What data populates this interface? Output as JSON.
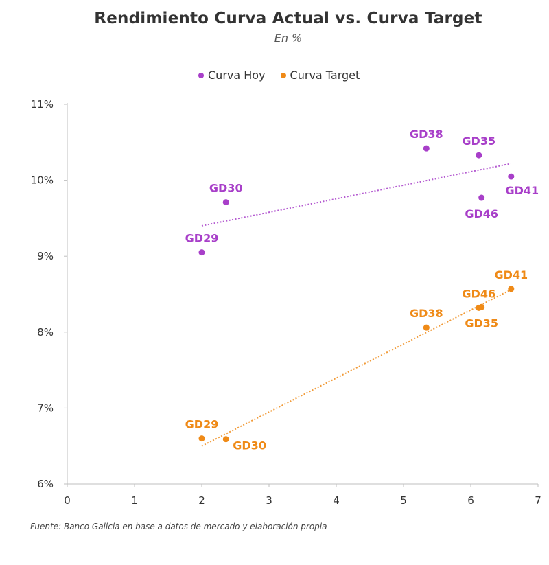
{
  "chart_data": {
    "type": "scatter",
    "title": "Rendimiento Curva Actual vs. Curva Target",
    "subtitle": "En %",
    "xlabel": "",
    "ylabel": "",
    "xlim": [
      0,
      7
    ],
    "ylim": [
      6,
      11
    ],
    "x_ticks": [
      "0",
      "1",
      "2",
      "3",
      "4",
      "5",
      "6",
      "7"
    ],
    "y_ticks": [
      "6%",
      "7%",
      "8%",
      "9%",
      "10%",
      "11%"
    ],
    "legend_position": "top-center",
    "series": [
      {
        "name": "Curva Hoy",
        "color": "#a83fc9",
        "trendline": {
          "style": "dotted",
          "x_start": 2.0,
          "y_start": 9.4,
          "x_end": 6.6,
          "y_end": 10.22
        },
        "points": [
          {
            "label": "GD29",
            "x": 2.0,
            "y": 9.05,
            "label_pos": "above"
          },
          {
            "label": "GD30",
            "x": 2.36,
            "y": 9.71,
            "label_pos": "above"
          },
          {
            "label": "GD38",
            "x": 5.34,
            "y": 10.42,
            "label_pos": "above"
          },
          {
            "label": "GD35",
            "x": 6.12,
            "y": 10.33,
            "label_pos": "above"
          },
          {
            "label": "GD41",
            "x": 6.6,
            "y": 10.05,
            "label_pos": "below-right"
          },
          {
            "label": "GD46",
            "x": 6.16,
            "y": 9.77,
            "label_pos": "below"
          }
        ]
      },
      {
        "name": "Curva Target",
        "color": "#ef8a17",
        "trendline": {
          "style": "dotted",
          "x_start": 2.0,
          "y_start": 6.5,
          "x_end": 6.6,
          "y_end": 8.56
        },
        "points": [
          {
            "label": "GD29",
            "x": 2.0,
            "y": 6.6,
            "label_pos": "above"
          },
          {
            "label": "GD30",
            "x": 2.36,
            "y": 6.59,
            "label_pos": "right"
          },
          {
            "label": "GD38",
            "x": 5.34,
            "y": 8.06,
            "label_pos": "above"
          },
          {
            "label": "GD46",
            "x": 6.12,
            "y": 8.32,
            "label_pos": "above"
          },
          {
            "label": "GD35",
            "x": 6.16,
            "y": 8.33,
            "label_pos": "below"
          },
          {
            "label": "GD41",
            "x": 6.6,
            "y": 8.57,
            "label_pos": "above"
          }
        ]
      }
    ]
  },
  "source": "Fuente: Banco Galicia en base a datos de mercado y elaboración propia"
}
